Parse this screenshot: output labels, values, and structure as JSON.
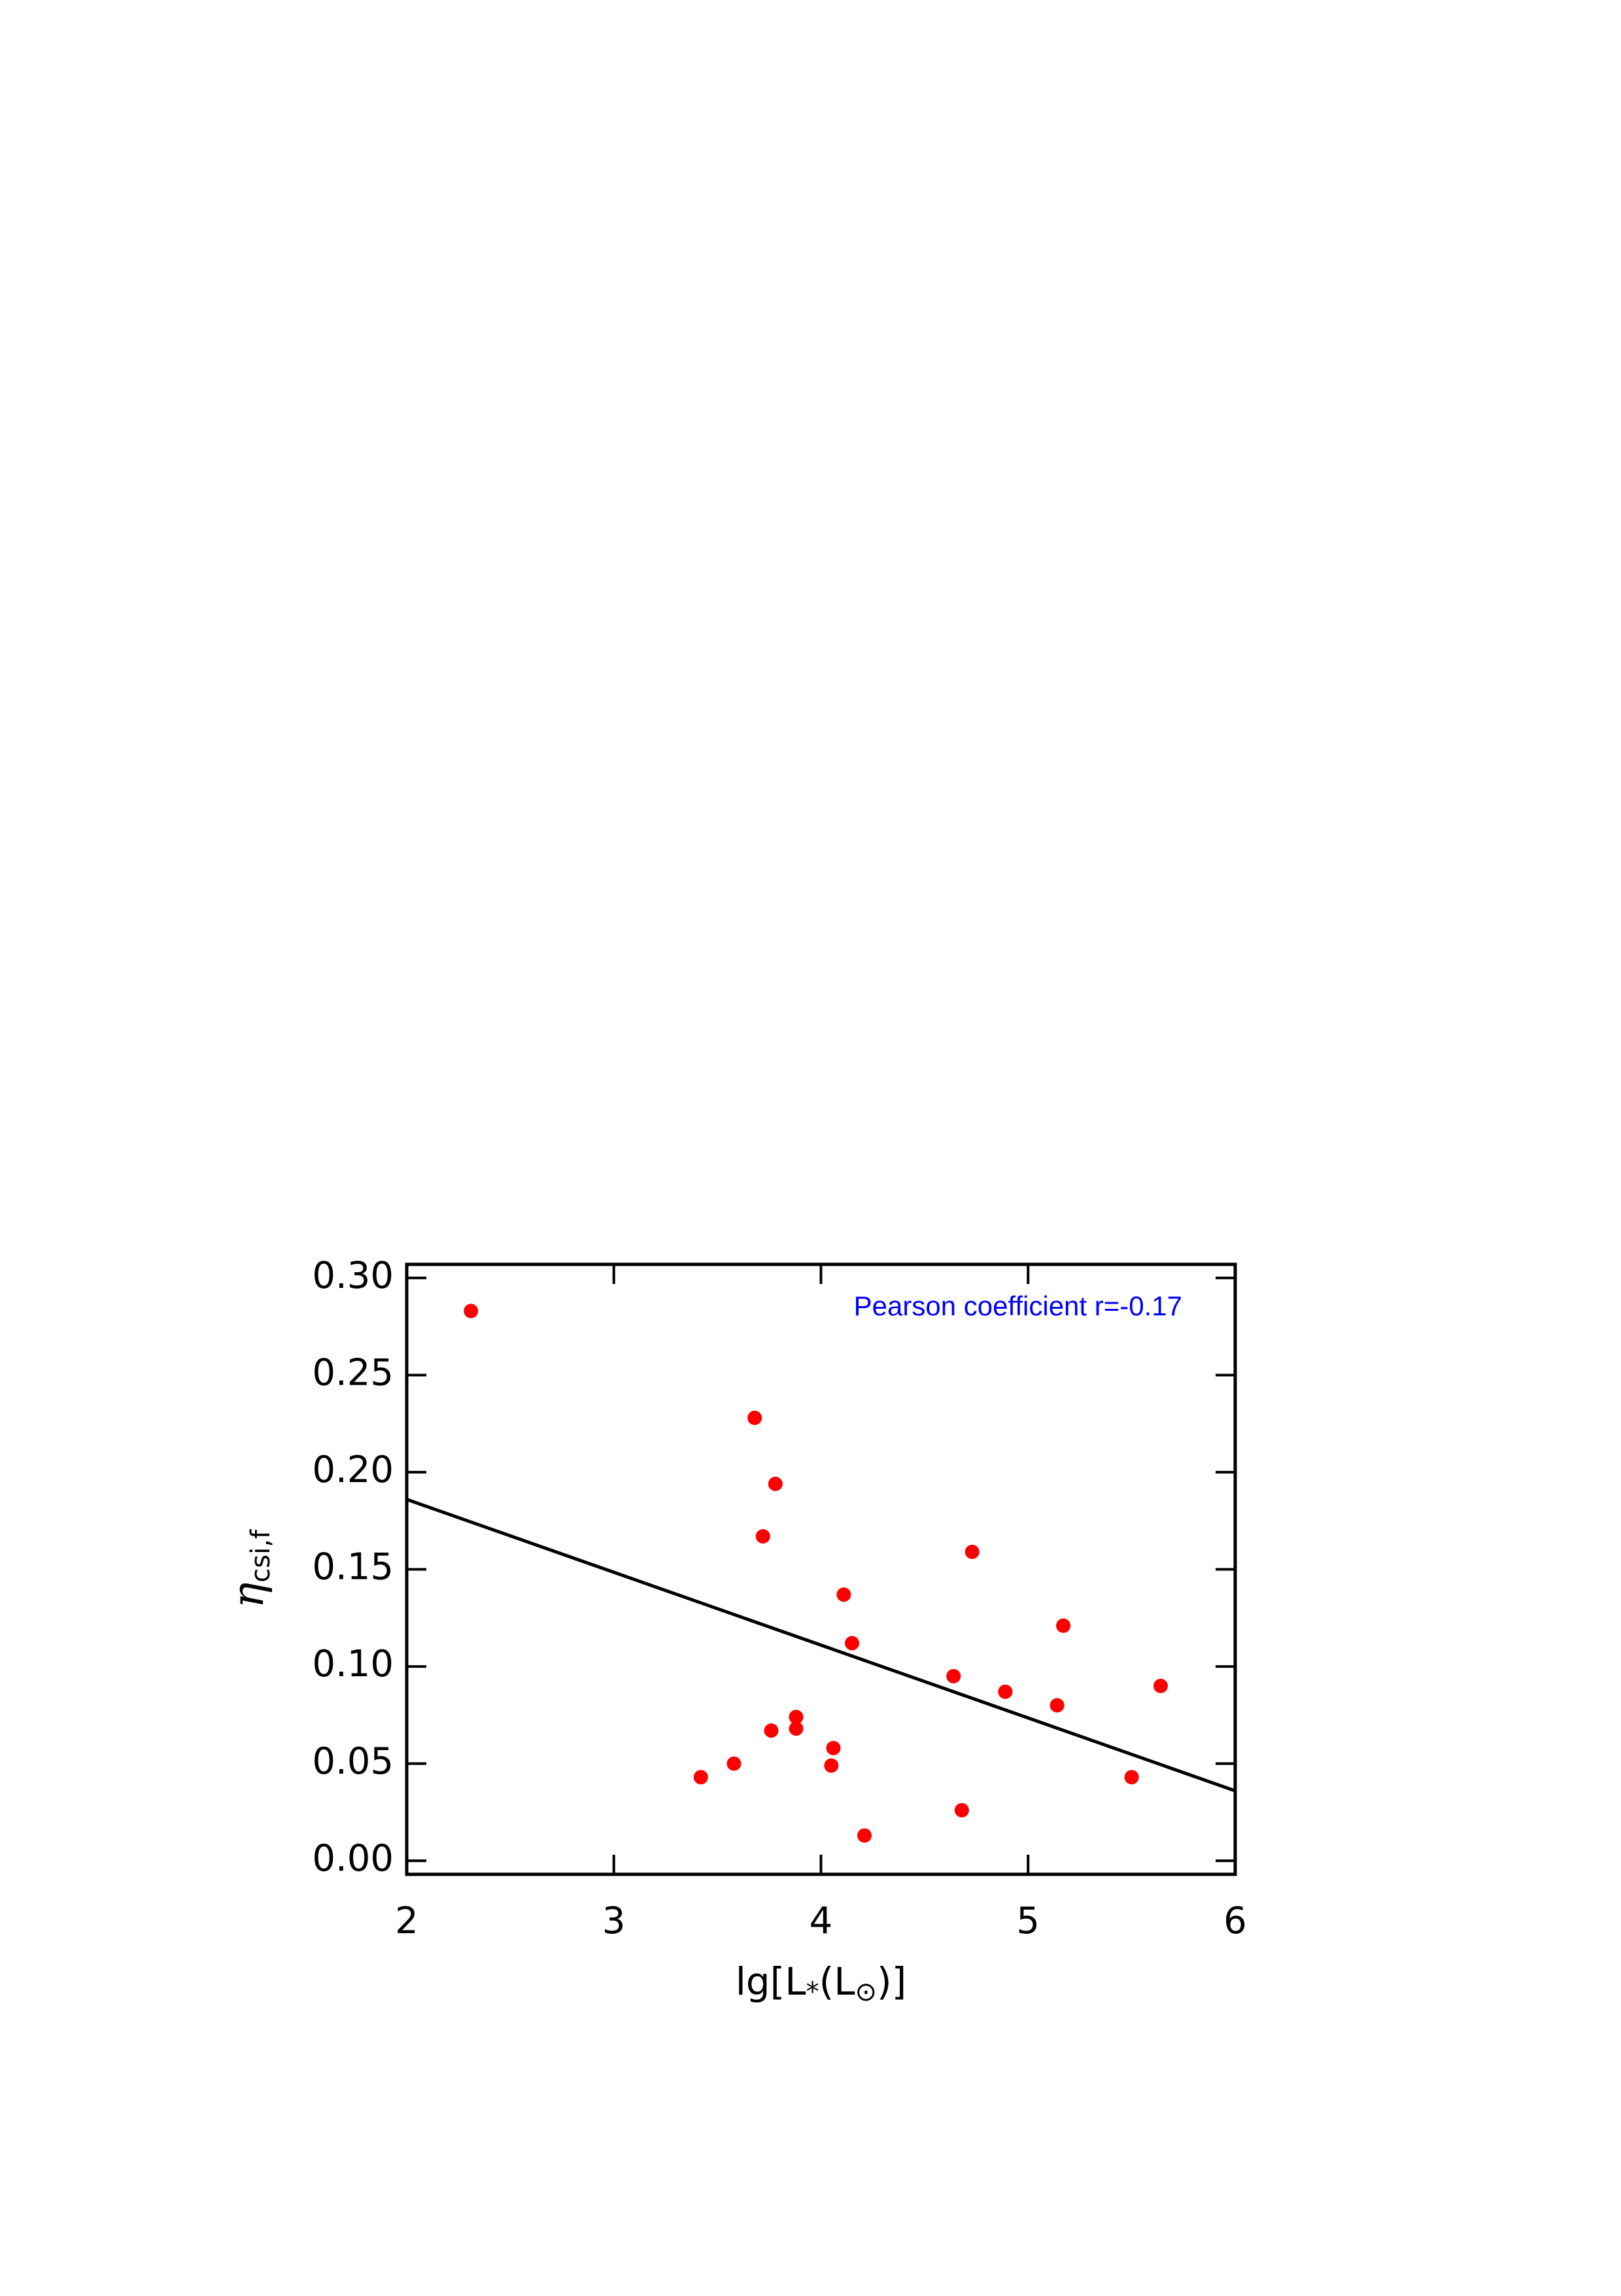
{
  "chart_data": {
    "type": "scatter",
    "xlabel": {
      "main": "lg[L",
      "sub": "*",
      "mid": "(L",
      "sub2": "⊙",
      "end": ")]"
    },
    "ylabel": {
      "symbol": "η",
      "subscript": "csi,f"
    },
    "annotation": {
      "text": "Pearson coefficient r=-0.17",
      "color": "#0000ff"
    },
    "xlim": [
      2,
      6
    ],
    "ylim": [
      -0.007,
      0.307
    ],
    "xticks": [
      2,
      3,
      4,
      5,
      6
    ],
    "yticks": [
      {
        "value": 0,
        "label": "0.00"
      },
      {
        "value": 0.05,
        "label": "0.05"
      },
      {
        "value": 0.1,
        "label": "0.10"
      },
      {
        "value": 0.15,
        "label": "0.15"
      },
      {
        "value": 0.2,
        "label": "0.20"
      },
      {
        "value": 0.25,
        "label": "0.25"
      },
      {
        "value": 0.3,
        "label": "0.30"
      }
    ],
    "series": [
      {
        "color": "#ff0000",
        "x": [
          2.31,
          3.68,
          3.78,
          3.72,
          4.73,
          4.11,
          4.15,
          5.17,
          4.64,
          4.89,
          5.14,
          5.64,
          3.88,
          3.88,
          3.76,
          4.06,
          4.05,
          3.58,
          3.42,
          5.5,
          4.68,
          4.21
        ],
        "values": [
          0.283,
          0.228,
          0.194,
          0.167,
          0.159,
          0.137,
          0.112,
          0.121,
          0.095,
          0.087,
          0.08,
          0.09,
          0.074,
          0.068,
          0.067,
          0.058,
          0.049,
          0.05,
          0.043,
          0.043,
          0.026,
          0.013
        ]
      },
      {
        "type": "line",
        "color": "#000000",
        "x": [
          2,
          6
        ],
        "values": [
          0.186,
          0.036
        ]
      }
    ]
  }
}
